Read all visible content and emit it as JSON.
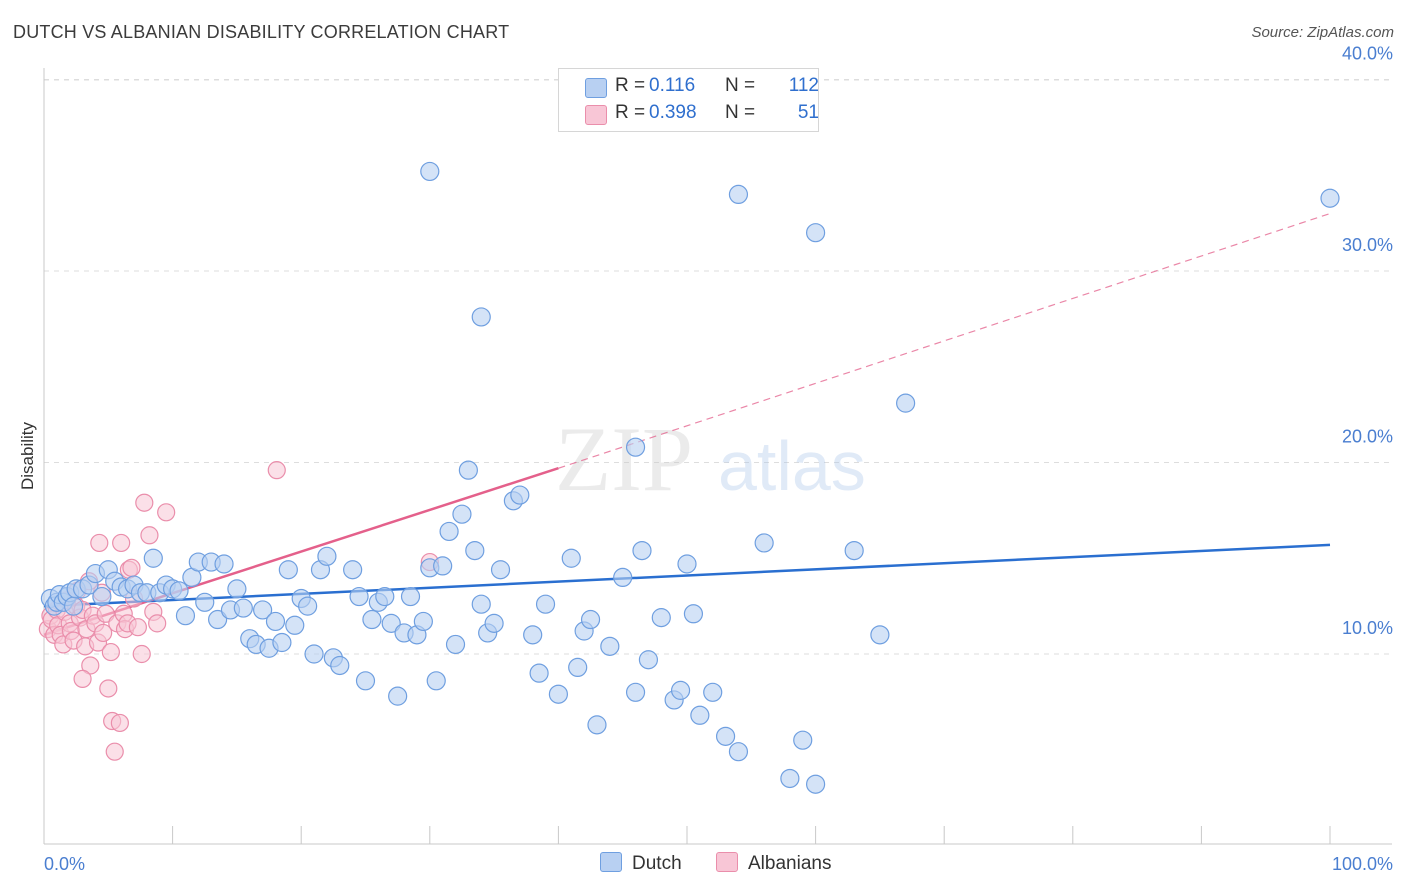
{
  "title": "DUTCH VS ALBANIAN DISABILITY CORRELATION CHART",
  "source": "Source: ZipAtlas.com",
  "watermark": {
    "zip": "ZIP",
    "atlas": "atlas"
  },
  "legend": {
    "r_label": "R =",
    "n_label": "N =",
    "dutch": {
      "r": "0.116",
      "n": "112"
    },
    "albanians": {
      "r": "0.398",
      "n": "51"
    }
  },
  "bottom_legend": {
    "dutch": "Dutch",
    "albanians": "Albanians"
  },
  "colors": {
    "dutch_fill": "#b8d0f2",
    "dutch_stroke": "#6f9fe0",
    "dutch_line": "#2a6fd0",
    "albanian_fill": "#f8c6d6",
    "albanian_stroke": "#ea8eab",
    "albanian_line": "#e4608b",
    "tick_label": "#4a7ed0",
    "grid": "#dddddd"
  },
  "chart_data": {
    "type": "scatter",
    "title": "DUTCH VS ALBANIAN DISABILITY CORRELATION CHART",
    "xlabel": "",
    "ylabel": "Disability",
    "xlim": [
      0,
      100
    ],
    "ylim": [
      0,
      42
    ],
    "x_tick_labels": [
      "0.0%",
      "100.0%"
    ],
    "y_ticks": [
      10,
      20,
      30,
      40
    ],
    "y_tick_labels": [
      "10.0%",
      "20.0%",
      "30.0%",
      "40.0%"
    ],
    "grid": true,
    "legend_position": "top-center",
    "series": [
      {
        "name": "Dutch",
        "r": 0.116,
        "n": 112,
        "trend": {
          "x": [
            0,
            100
          ],
          "y": [
            12.5,
            15.7
          ],
          "style": "solid"
        },
        "points": [
          [
            0.5,
            12.9
          ],
          [
            0.8,
            12.5
          ],
          [
            1,
            12.7
          ],
          [
            1.2,
            13.1
          ],
          [
            1.5,
            12.7
          ],
          [
            1.8,
            13.0
          ],
          [
            2,
            13.2
          ],
          [
            2.3,
            12.5
          ],
          [
            2.5,
            13.4
          ],
          [
            3,
            13.4
          ],
          [
            3.5,
            13.6
          ],
          [
            4,
            14.2
          ],
          [
            4.5,
            13.0
          ],
          [
            5,
            14.4
          ],
          [
            5.5,
            13.8
          ],
          [
            6,
            13.5
          ],
          [
            6.5,
            13.4
          ],
          [
            7,
            13.6
          ],
          [
            7.5,
            13.2
          ],
          [
            8,
            13.2
          ],
          [
            8.5,
            15.0
          ],
          [
            9,
            13.2
          ],
          [
            9.5,
            13.6
          ],
          [
            10,
            13.4
          ],
          [
            10.5,
            13.3
          ],
          [
            11,
            12.0
          ],
          [
            11.5,
            14.0
          ],
          [
            12,
            14.8
          ],
          [
            12.5,
            12.7
          ],
          [
            13,
            14.8
          ],
          [
            13.5,
            11.8
          ],
          [
            14,
            14.7
          ],
          [
            14.5,
            12.3
          ],
          [
            15,
            13.4
          ],
          [
            15.5,
            12.4
          ],
          [
            16,
            10.8
          ],
          [
            16.5,
            10.5
          ],
          [
            17,
            12.3
          ],
          [
            17.5,
            10.3
          ],
          [
            18,
            11.7
          ],
          [
            18.5,
            10.6
          ],
          [
            19,
            14.4
          ],
          [
            19.5,
            11.5
          ],
          [
            20,
            12.9
          ],
          [
            20.5,
            12.5
          ],
          [
            21,
            10.0
          ],
          [
            21.5,
            14.4
          ],
          [
            22,
            15.1
          ],
          [
            22.5,
            9.8
          ],
          [
            23,
            9.4
          ],
          [
            24,
            14.4
          ],
          [
            24.5,
            13.0
          ],
          [
            25,
            8.6
          ],
          [
            25.5,
            11.8
          ],
          [
            26,
            12.7
          ],
          [
            26.5,
            13.0
          ],
          [
            27,
            11.6
          ],
          [
            27.5,
            7.8
          ],
          [
            28,
            11.1
          ],
          [
            28.5,
            13.0
          ],
          [
            29,
            11.0
          ],
          [
            29.5,
            11.7
          ],
          [
            30,
            14.5
          ],
          [
            30.5,
            8.6
          ],
          [
            31,
            14.6
          ],
          [
            31.5,
            16.4
          ],
          [
            32,
            10.5
          ],
          [
            32.5,
            17.3
          ],
          [
            33,
            19.6
          ],
          [
            33.5,
            15.4
          ],
          [
            34,
            12.6
          ],
          [
            34.5,
            11.1
          ],
          [
            35,
            11.6
          ],
          [
            35.5,
            14.4
          ],
          [
            36.5,
            18.0
          ],
          [
            37,
            18.3
          ],
          [
            38,
            11.0
          ],
          [
            38.5,
            9.0
          ],
          [
            39,
            12.6
          ],
          [
            40,
            7.9
          ],
          [
            41,
            15.0
          ],
          [
            41.5,
            9.3
          ],
          [
            42,
            11.2
          ],
          [
            42.5,
            11.8
          ],
          [
            43,
            6.3
          ],
          [
            44,
            10.4
          ],
          [
            45,
            14.0
          ],
          [
            46,
            8.0
          ],
          [
            46.5,
            15.4
          ],
          [
            47,
            9.7
          ],
          [
            48,
            11.9
          ],
          [
            49,
            7.6
          ],
          [
            49.5,
            8.1
          ],
          [
            50,
            14.7
          ],
          [
            50.5,
            12.1
          ],
          [
            51,
            6.8
          ],
          [
            52,
            8.0
          ],
          [
            53,
            5.7
          ],
          [
            54,
            4.9
          ],
          [
            56,
            15.8
          ],
          [
            58,
            3.5
          ],
          [
            59,
            5.5
          ],
          [
            60,
            3.2
          ],
          [
            63,
            15.4
          ],
          [
            65,
            11.0
          ],
          [
            67,
            23.1
          ],
          [
            46,
            20.8
          ],
          [
            30,
            35.2
          ],
          [
            34,
            27.6
          ],
          [
            54,
            34.0
          ],
          [
            60,
            32.0
          ],
          [
            100,
            33.8
          ]
        ]
      },
      {
        "name": "Albanians",
        "r": 0.398,
        "n": 51,
        "trend": {
          "x": [
            0,
            40,
            100
          ],
          "y": [
            11.0,
            19.7,
            33.0
          ],
          "style": "solid-then-dashed"
        },
        "points": [
          [
            0.3,
            11.3
          ],
          [
            0.5,
            12.0
          ],
          [
            0.6,
            11.8
          ],
          [
            0.8,
            11.0
          ],
          [
            1,
            12.3
          ],
          [
            1.1,
            11.5
          ],
          [
            1.3,
            11.0
          ],
          [
            1.5,
            10.5
          ],
          [
            1.6,
            12.2
          ],
          [
            1.8,
            12.8
          ],
          [
            2,
            11.6
          ],
          [
            2.1,
            11.2
          ],
          [
            2.3,
            10.7
          ],
          [
            2.5,
            12.5
          ],
          [
            2.6,
            13.3
          ],
          [
            2.8,
            11.9
          ],
          [
            3,
            12.3
          ],
          [
            3.2,
            10.4
          ],
          [
            3.3,
            11.3
          ],
          [
            3.5,
            13.8
          ],
          [
            3.6,
            9.4
          ],
          [
            3.8,
            12.0
          ],
          [
            4,
            11.6
          ],
          [
            4.2,
            10.6
          ],
          [
            4.3,
            15.8
          ],
          [
            4.5,
            13.2
          ],
          [
            4.6,
            11.1
          ],
          [
            4.8,
            12.1
          ],
          [
            5,
            8.2
          ],
          [
            5.2,
            10.1
          ],
          [
            5.3,
            6.5
          ],
          [
            5.5,
            4.9
          ],
          [
            5.7,
            11.6
          ],
          [
            5.9,
            6.4
          ],
          [
            6,
            15.8
          ],
          [
            6.2,
            12.1
          ],
          [
            6.3,
            11.3
          ],
          [
            6.5,
            11.6
          ],
          [
            6.6,
            14.4
          ],
          [
            6.8,
            14.5
          ],
          [
            7,
            12.9
          ],
          [
            7.3,
            11.4
          ],
          [
            7.6,
            10.0
          ],
          [
            7.8,
            17.9
          ],
          [
            8.2,
            16.2
          ],
          [
            8.5,
            12.2
          ],
          [
            8.8,
            11.6
          ],
          [
            9.5,
            17.4
          ],
          [
            18.1,
            19.6
          ],
          [
            30,
            14.8
          ],
          [
            3.0,
            8.7
          ]
        ]
      }
    ]
  }
}
